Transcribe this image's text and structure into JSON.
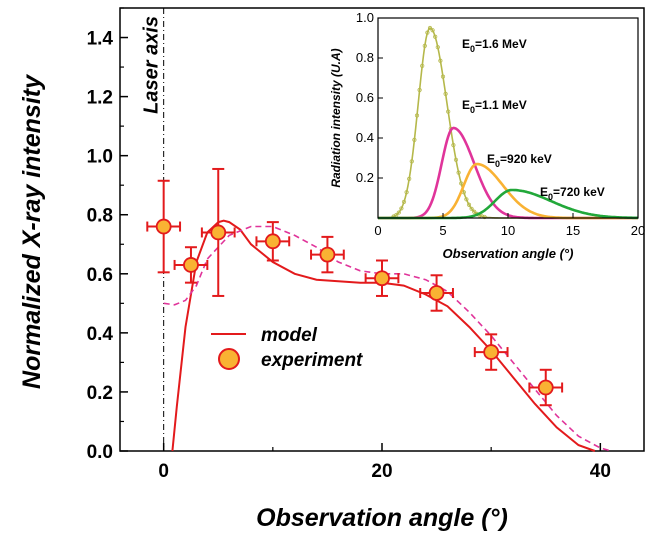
{
  "chart_data": [
    {
      "type": "line",
      "xlabel": "Observation angle (°)",
      "ylabel": "Normalized X-ray intensity",
      "xlim": [
        -4,
        44
      ],
      "ylim": [
        0,
        1.5
      ],
      "x_ticks": [
        "0",
        "20",
        "40"
      ],
      "y_ticks": [
        "0.0",
        "0.2",
        "0.4",
        "0.6",
        "0.8",
        "1.0",
        "1.2",
        "1.4"
      ],
      "grid": false,
      "legend_position": "center-left",
      "annotation": "Laser axis",
      "colors": {
        "model": "#e31a1c",
        "model_dashed": "#e0349a",
        "marker_fill": "#f9b233",
        "marker_edge": "#e31a1c"
      },
      "series": [
        {
          "name": "model",
          "style": "solid",
          "x": [
            0.8,
            1.2,
            2,
            3,
            4,
            5,
            5.5,
            6,
            7,
            8,
            10,
            12,
            14,
            16,
            18,
            20,
            22,
            24,
            26,
            28,
            30,
            32,
            34,
            36,
            38,
            39.5
          ],
          "y": [
            0.0,
            0.15,
            0.42,
            0.64,
            0.74,
            0.775,
            0.78,
            0.775,
            0.75,
            0.7,
            0.64,
            0.6,
            0.58,
            0.575,
            0.57,
            0.57,
            0.56,
            0.53,
            0.49,
            0.42,
            0.34,
            0.25,
            0.16,
            0.08,
            0.02,
            0.0
          ]
        },
        {
          "name": "",
          "style": "dashed",
          "x": [
            0,
            1,
            2,
            3,
            4,
            6,
            8,
            10,
            12,
            14,
            16,
            18,
            20,
            22,
            24,
            26,
            28,
            30,
            32,
            34,
            36,
            38,
            40,
            41
          ],
          "y": [
            0.5,
            0.495,
            0.51,
            0.56,
            0.65,
            0.73,
            0.76,
            0.76,
            0.73,
            0.69,
            0.64,
            0.61,
            0.6,
            0.6,
            0.58,
            0.54,
            0.47,
            0.39,
            0.3,
            0.21,
            0.12,
            0.05,
            0.01,
            0.0
          ]
        },
        {
          "name": "experiment",
          "style": "markers",
          "points": [
            {
              "x": 0,
              "y": 0.76,
              "xerr": 1.5,
              "yerr": 0.155
            },
            {
              "x": 2.5,
              "y": 0.63,
              "xerr": 1.5,
              "yerr": 0.06
            },
            {
              "x": 5,
              "y": 0.74,
              "xerr": 1.5,
              "yerr": 0.215
            },
            {
              "x": 10,
              "y": 0.71,
              "xerr": 1.5,
              "yerr": 0.065
            },
            {
              "x": 15,
              "y": 0.665,
              "xerr": 1.5,
              "yerr": 0.06
            },
            {
              "x": 20,
              "y": 0.585,
              "xerr": 1.5,
              "yerr": 0.06
            },
            {
              "x": 25,
              "y": 0.535,
              "xerr": 1.5,
              "yerr": 0.06
            },
            {
              "x": 30,
              "y": 0.335,
              "xerr": 1.5,
              "yerr": 0.06
            },
            {
              "x": 35,
              "y": 0.215,
              "xerr": 1.5,
              "yerr": 0.06
            }
          ]
        }
      ]
    },
    {
      "type": "line",
      "xlabel": "Observation angle (°)",
      "ylabel": "Radiation intensity (U.A)",
      "xlim": [
        0,
        20
      ],
      "ylim": [
        0,
        1.0
      ],
      "x_ticks": [
        "0",
        "5",
        "10",
        "15",
        "20"
      ],
      "y_ticks": [
        "0.2",
        "0.4",
        "0.6",
        "0.8",
        "1.0"
      ],
      "grid": false,
      "series": [
        {
          "name": "E0=1.6 MeV",
          "label_main": "E",
          "label_sub": "0",
          "label_rest": "=1.6 MeV",
          "color": "#b5b84a",
          "peak_x": 4.0,
          "peak_y": 0.95,
          "width_left": 0.9,
          "width_right": 1.3
        },
        {
          "name": "E0=1.1 MeV",
          "label_main": "E",
          "label_sub": "0",
          "label_rest": "=1.1 MeV",
          "color": "#e0349a",
          "peak_x": 5.8,
          "peak_y": 0.45,
          "width_left": 0.9,
          "width_right": 1.6
        },
        {
          "name": "E0=920 keV",
          "label_main": "E",
          "label_sub": "0",
          "label_rest": "=920 keV",
          "color": "#f9b233",
          "peak_x": 7.6,
          "peak_y": 0.27,
          "width_left": 1.0,
          "width_right": 2.0
        },
        {
          "name": "E0=720 keV",
          "label_main": "E",
          "label_sub": "0",
          "label_rest": "=720 keV",
          "color": "#22a83a",
          "peak_x": 10.3,
          "peak_y": 0.14,
          "width_left": 1.3,
          "width_right": 3.0
        }
      ]
    }
  ]
}
